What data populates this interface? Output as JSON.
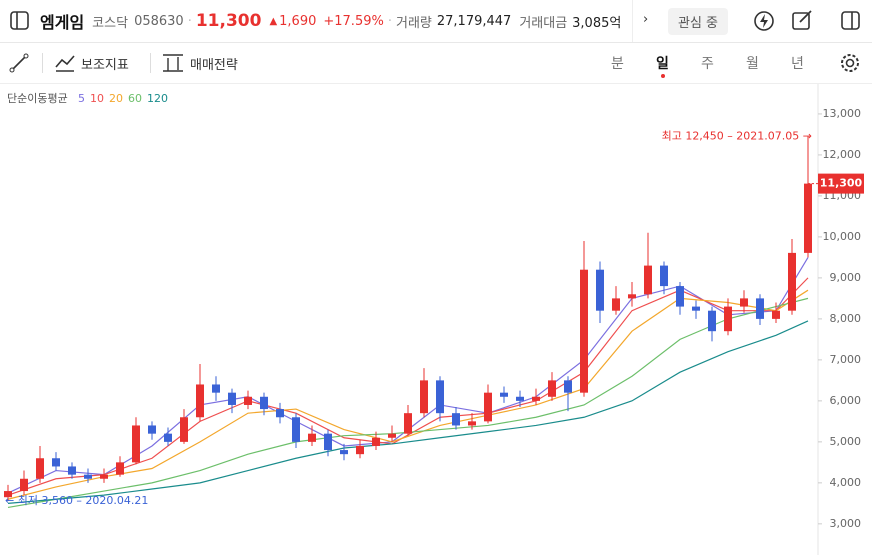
{
  "header": {
    "name": "엠게임",
    "market": "코스닥",
    "code": "058630",
    "price": "11,300",
    "change": "1,690",
    "rate": "+17.59%",
    "volume_label": "거래량",
    "volume": "27,179,447",
    "amount_label": "거래대금",
    "amount": "3,085억",
    "watch_button": "관심 중"
  },
  "toolbar": {
    "indicator": "보조지표",
    "strategy": "매매전략",
    "periods": [
      "분",
      "일",
      "주",
      "월",
      "년"
    ],
    "selected_period": 1
  },
  "chart_data": {
    "type": "candlestick",
    "ma_legend_title": "단순이동평균",
    "up_color": "#e8312f",
    "down_color": "#3a62d6",
    "open": [
      3650,
      3800,
      4100,
      4600,
      4400,
      4200,
      4100,
      4200,
      4500,
      5400,
      5200,
      5000,
      5600,
      6400,
      6200,
      5900,
      6100,
      5800,
      5600,
      5000,
      5200,
      4800,
      4700,
      4900,
      5100,
      5200,
      5700,
      6500,
      5700,
      5400,
      5500,
      6200,
      6100,
      6000,
      6100,
      6500,
      6200,
      9200,
      8200,
      8500,
      8600,
      9300,
      8800,
      8300,
      8200,
      7700,
      8300,
      8500,
      8000,
      8200,
      9610
    ],
    "high": [
      3950,
      4300,
      4900,
      4750,
      4500,
      4350,
      4350,
      4650,
      5600,
      5500,
      5350,
      5800,
      6900,
      6600,
      6300,
      6250,
      6200,
      5950,
      5700,
      5400,
      5300,
      4950,
      5050,
      5250,
      5400,
      5900,
      6800,
      6600,
      5850,
      5700,
      6400,
      6350,
      6250,
      6300,
      6700,
      6600,
      9900,
      9400,
      8800,
      8900,
      10100,
      9400,
      8900,
      8450,
      8300,
      8500,
      8700,
      8600,
      8400,
      9950,
      12450
    ],
    "low": [
      3560,
      3700,
      4000,
      4300,
      4100,
      4000,
      4000,
      4150,
      4450,
      5050,
      4900,
      4950,
      5500,
      6000,
      5700,
      5800,
      5650,
      5450,
      4850,
      4900,
      4650,
      4550,
      4600,
      4800,
      5000,
      5150,
      5600,
      5500,
      5300,
      5300,
      5450,
      5950,
      5850,
      5900,
      6000,
      5750,
      6100,
      7900,
      8100,
      8300,
      8500,
      8600,
      8100,
      8000,
      7450,
      7600,
      8150,
      7850,
      7900,
      8100,
      9500
    ],
    "close": [
      3800,
      4100,
      4600,
      4400,
      4200,
      4100,
      4200,
      4500,
      5400,
      5200,
      5000,
      5600,
      6400,
      6200,
      5900,
      6100,
      5800,
      5600,
      5000,
      5200,
      4800,
      4700,
      4900,
      5100,
      5200,
      5700,
      6500,
      5700,
      5400,
      5500,
      6200,
      6100,
      6000,
      6100,
      6500,
      6200,
      9200,
      8200,
      8500,
      8600,
      9300,
      8800,
      8300,
      8200,
      7700,
      8300,
      8500,
      8000,
      8200,
      9610,
      11300
    ],
    "ma_x": [
      0,
      3,
      6,
      9,
      12,
      15,
      18,
      21,
      24,
      27,
      30,
      33,
      36,
      39,
      42,
      45,
      48,
      50
    ],
    "series": [
      {
        "name": "5",
        "color": "#7b6fe0",
        "values": [
          3750,
          4300,
          4200,
          4900,
          5900,
          6100,
          5500,
          4900,
          5000,
          5900,
          5700,
          6100,
          7000,
          8500,
          8800,
          8100,
          8200,
          9500
        ]
      },
      {
        "name": "10",
        "color": "#ef4f4f",
        "values": [
          3700,
          4100,
          4200,
          4600,
          5500,
          6000,
          5700,
          5100,
          4950,
          5600,
          5700,
          6000,
          6700,
          8200,
          8700,
          8200,
          8200,
          9000
        ]
      },
      {
        "name": "20",
        "color": "#f3a72c",
        "values": [
          3600,
          3900,
          4150,
          4350,
          5000,
          5700,
          5800,
          5300,
          5000,
          5400,
          5650,
          5900,
          6300,
          7700,
          8500,
          8400,
          8200,
          8700
        ]
      },
      {
        "name": "60",
        "color": "#6cbf6a",
        "values": [
          3400,
          3600,
          3800,
          4000,
          4300,
          4700,
          5000,
          5150,
          5200,
          5300,
          5400,
          5600,
          5900,
          6600,
          7500,
          8000,
          8300,
          8500
        ]
      },
      {
        "name": "120",
        "color": "#1a8c8c",
        "values": [
          3500,
          3600,
          3700,
          3850,
          4000,
          4300,
          4600,
          4850,
          4950,
          5100,
          5250,
          5400,
          5600,
          6000,
          6700,
          7200,
          7600,
          7950
        ]
      }
    ],
    "ylim": [
      2240,
      13730
    ],
    "yticks": [
      {
        "value": 3000,
        "label": "3,000"
      },
      {
        "value": 4000,
        "label": "4,000"
      },
      {
        "value": 5000,
        "label": "5,000"
      },
      {
        "value": 6000,
        "label": "6,000"
      },
      {
        "value": 7000,
        "label": "7,000"
      },
      {
        "value": 8000,
        "label": "8,000"
      },
      {
        "value": 9000,
        "label": "9,000"
      },
      {
        "value": 10000,
        "label": "10,000"
      },
      {
        "value": 11000,
        "label": "11,000"
      },
      {
        "value": 12000,
        "label": "12,000"
      },
      {
        "value": 13000,
        "label": "13,000"
      }
    ],
    "last_price": {
      "value": 11300,
      "label": "11,300"
    },
    "annotations": [
      {
        "text": "최고 12,450 – 2021.07.05 →",
        "value": 12450,
        "index": 50,
        "color": "#e8312f"
      },
      {
        "text": "← 최저 3,560 – 2020.04.21",
        "value": 3560,
        "index": 0,
        "color": "#3a62d6"
      }
    ]
  }
}
